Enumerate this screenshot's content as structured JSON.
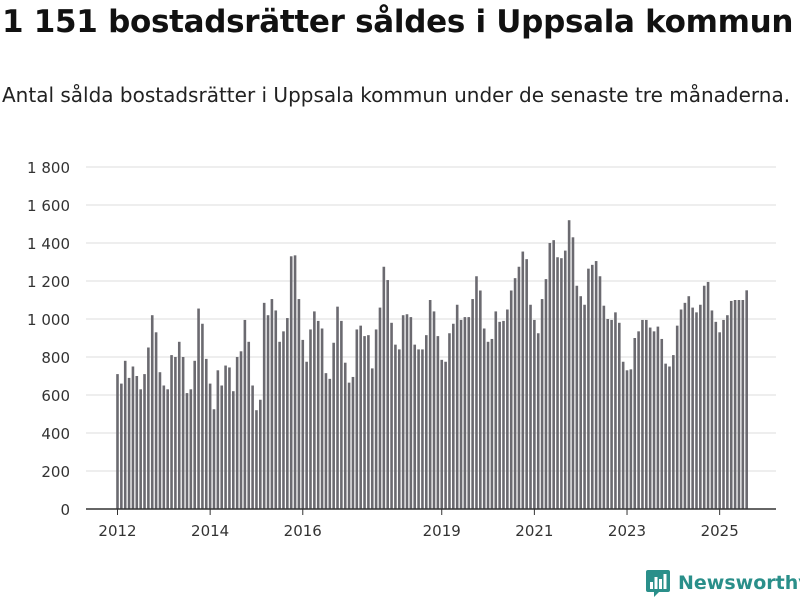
{
  "header": {
    "title": "1 151 bostadsrätter såldes i Uppsala kommun",
    "subtitle": "Antal sålda bostadsrätter i Uppsala kommun under de senaste tre månaderna."
  },
  "brand": {
    "name": "Newsworthy",
    "color": "#2a8f8a",
    "icon": "newsworthy-logo-icon"
  },
  "colors": {
    "bar": "#6b6a70",
    "highlight": "#1a9e8f",
    "grid": "#dddddd",
    "axis": "#333333"
  },
  "chart_data": {
    "type": "bar",
    "title": "1 151 bostadsrätter såldes i Uppsala kommun",
    "subtitle": "Antal sålda bostadsrätter i Uppsala kommun under de senaste tre månaderna.",
    "xlabel": "",
    "ylabel": "",
    "ylim": [
      0,
      1800
    ],
    "yticks": [
      0,
      200,
      400,
      600,
      800,
      1000,
      1200,
      1400,
      1600,
      1800
    ],
    "ytick_labels": [
      "0",
      "200",
      "400",
      "600",
      "800",
      "1 000",
      "1 200",
      "1 400",
      "1 600",
      "1 800"
    ],
    "grid": true,
    "xticks": [
      {
        "label": "2012",
        "index": 0
      },
      {
        "label": "2014",
        "index": 24
      },
      {
        "label": "2016",
        "index": 48
      },
      {
        "label": "2019",
        "index": 84
      },
      {
        "label": "2021",
        "index": 108
      },
      {
        "label": "2023",
        "index": 132
      },
      {
        "label": "2025",
        "index": 156
      }
    ],
    "highlight_index": 164,
    "highlight_label": "1 151",
    "values": [
      710,
      660,
      780,
      690,
      750,
      700,
      630,
      710,
      850,
      1020,
      930,
      720,
      650,
      630,
      810,
      800,
      880,
      800,
      610,
      630,
      780,
      1055,
      975,
      790,
      660,
      525,
      730,
      650,
      755,
      745,
      620,
      800,
      830,
      995,
      880,
      650,
      520,
      575,
      1085,
      1020,
      1105,
      1045,
      880,
      935,
      1005,
      1330,
      1335,
      1105,
      890,
      775,
      945,
      1040,
      990,
      950,
      715,
      685,
      875,
      1065,
      990,
      770,
      665,
      695,
      945,
      965,
      910,
      915,
      740,
      945,
      1060,
      1275,
      1205,
      980,
      865,
      840,
      1020,
      1025,
      1010,
      865,
      840,
      840,
      915,
      1100,
      1040,
      910,
      785,
      775,
      925,
      975,
      1075,
      995,
      1010,
      1010,
      1105,
      1225,
      1150,
      950,
      880,
      895,
      1040,
      985,
      990,
      1050,
      1150,
      1215,
      1275,
      1355,
      1315,
      1075,
      995,
      925,
      1105,
      1210,
      1400,
      1415,
      1325,
      1320,
      1360,
      1520,
      1430,
      1175,
      1120,
      1075,
      1265,
      1285,
      1305,
      1225,
      1070,
      1000,
      995,
      1035,
      980,
      775,
      730,
      735,
      900,
      935,
      995,
      995,
      955,
      935,
      960,
      895,
      765,
      750,
      810,
      965,
      1050,
      1085,
      1120,
      1060,
      1035,
      1075,
      1175,
      1195,
      1045,
      985,
      930,
      995,
      1020,
      1095,
      1100,
      1100,
      1100,
      1151
    ]
  }
}
